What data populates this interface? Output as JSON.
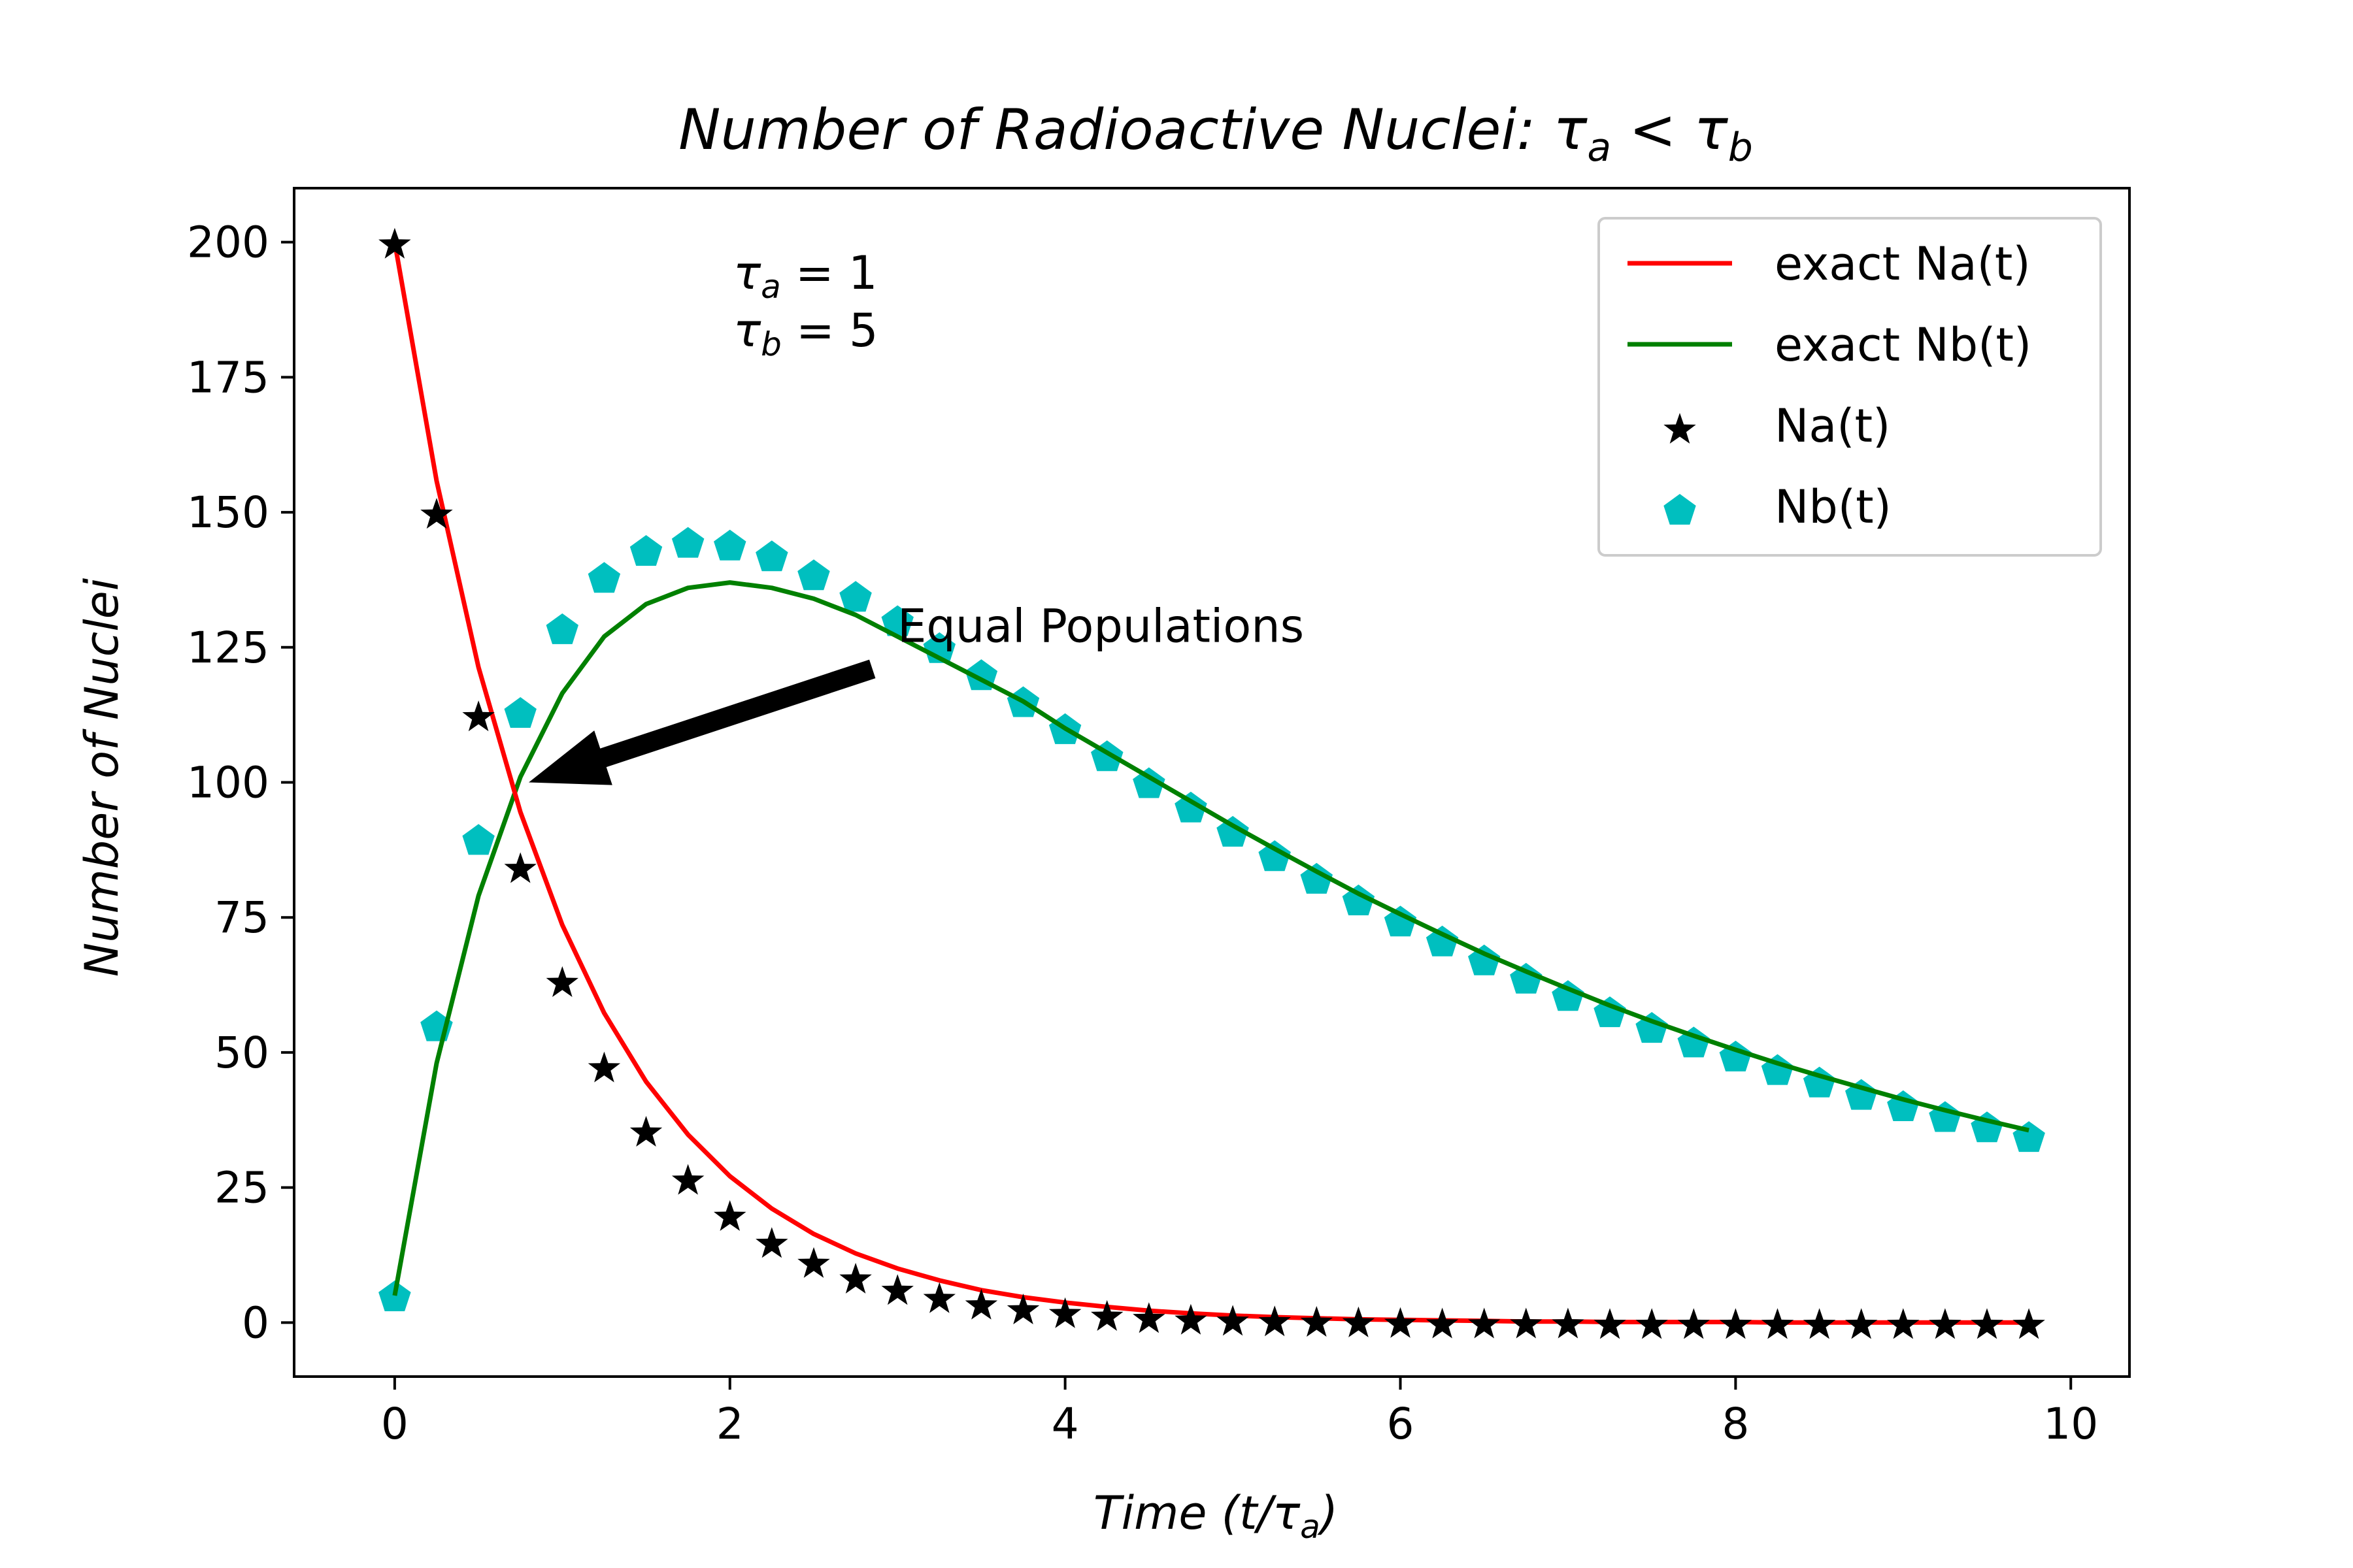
{
  "chart_data": {
    "type": "line",
    "title": {
      "prefix": "Number of Radioactive Nuclei: τ",
      "sub1": "a",
      "middle": " < τ",
      "sub2": "b"
    },
    "xlabel": {
      "prefix": "Time (t/τ",
      "sub": "a",
      "suffix": ")"
    },
    "ylabel": "Number of Nuclei",
    "xlim": [
      -0.6,
      10.35
    ],
    "ylim": [
      -10,
      210
    ],
    "xticks": [
      0,
      2,
      4,
      6,
      8,
      10
    ],
    "yticks": [
      0,
      25,
      50,
      75,
      100,
      125,
      150,
      175,
      200
    ],
    "legend_position": "upper right",
    "parameters": [
      {
        "symbol": "τ",
        "sub": "a",
        "text": " = 1"
      },
      {
        "symbol": "τ",
        "sub": "b",
        "text": " = 5"
      }
    ],
    "annotation": {
      "text": "Equal Populations",
      "text_at": [
        3.0,
        126
      ],
      "arrow_from": [
        2.85,
        121
      ],
      "arrow_to": [
        0.8,
        100
      ]
    },
    "series": [
      {
        "name": "exact Na(t)",
        "kind": "line",
        "color": "#ff0000",
        "x": [
          0,
          0.25,
          0.5,
          0.75,
          1,
          1.25,
          1.5,
          1.75,
          2,
          2.25,
          2.5,
          2.75,
          3,
          3.25,
          3.5,
          3.75,
          4,
          4.25,
          4.5,
          4.75,
          5,
          5.25,
          5.5,
          5.75,
          6,
          6.25,
          6.5,
          6.75,
          7,
          7.25,
          7.5,
          7.75,
          8,
          8.25,
          8.5,
          8.75,
          9,
          9.25,
          9.5,
          9.75
        ],
        "y": [
          200,
          155.8,
          121.3,
          94.5,
          73.6,
          57.3,
          44.6,
          34.8,
          27.1,
          21.1,
          16.4,
          12.8,
          10.0,
          7.8,
          6.0,
          4.7,
          3.7,
          2.9,
          2.2,
          1.7,
          1.3,
          1.0,
          0.8,
          0.6,
          0.5,
          0.4,
          0.3,
          0.2,
          0.2,
          0.1,
          0.1,
          0.1,
          0.1,
          0,
          0,
          0,
          0,
          0,
          0,
          0
        ]
      },
      {
        "name": "exact Nb(t)",
        "kind": "line",
        "color": "#008000",
        "x": [
          0,
          0.25,
          0.5,
          0.75,
          1,
          1.25,
          1.5,
          1.75,
          2,
          2.25,
          2.5,
          2.75,
          3,
          3.25,
          3.5,
          3.75,
          4,
          4.25,
          4.5,
          4.75,
          5,
          5.25,
          5.5,
          5.75,
          6,
          6.25,
          6.5,
          6.75,
          7,
          7.25,
          7.5,
          7.75,
          8,
          8.25,
          8.5,
          8.75,
          9,
          9.25,
          9.5,
          9.75
        ],
        "y": [
          5,
          48,
          79,
          101,
          116.5,
          127,
          133,
          136,
          137,
          136,
          134,
          131,
          127,
          123,
          119,
          115,
          110,
          105.5,
          101,
          96.5,
          92,
          87.7,
          83.5,
          79.4,
          75.6,
          71.9,
          68.3,
          65,
          61.8,
          58.7,
          55.8,
          53.1,
          50.5,
          48,
          45.7,
          43.5,
          41.3,
          39.3,
          37.4,
          35.6
        ]
      },
      {
        "name": "Na(t)",
        "kind": "scatter",
        "marker": "star",
        "color": "#000000",
        "x": [
          0,
          0.25,
          0.5,
          0.75,
          1,
          1.25,
          1.5,
          1.75,
          2,
          2.25,
          2.5,
          2.75,
          3,
          3.25,
          3.5,
          3.75,
          4,
          4.25,
          4.5,
          4.75,
          5,
          5.25,
          5.5,
          5.75,
          6,
          6.25,
          6.5,
          6.75,
          7,
          7.25,
          7.5,
          7.75,
          8,
          8.25,
          8.5,
          8.75,
          9,
          9.25,
          9.5,
          9.75
        ],
        "y": [
          200,
          150,
          112.5,
          84.4,
          63.3,
          47.5,
          35.6,
          26.7,
          20,
          15,
          11.3,
          8.4,
          6.3,
          4.8,
          3.6,
          2.7,
          2,
          1.5,
          1.1,
          0.8,
          0.6,
          0.5,
          0.4,
          0.3,
          0.2,
          0.1,
          0.1,
          0.1,
          0.1,
          0,
          0,
          0,
          0,
          0,
          0,
          0,
          0,
          0,
          0,
          0
        ]
      },
      {
        "name": "Nb(t)",
        "kind": "scatter",
        "marker": "pentagon",
        "color": "#00bfbf",
        "x": [
          0,
          0.25,
          0.5,
          0.75,
          1,
          1.25,
          1.5,
          1.75,
          2,
          2.25,
          2.5,
          2.75,
          3,
          3.25,
          3.5,
          3.75,
          4,
          4.25,
          4.5,
          4.75,
          5,
          5.25,
          5.5,
          5.75,
          6,
          6.25,
          6.5,
          6.75,
          7,
          7.25,
          7.5,
          7.75,
          8,
          8.25,
          8.5,
          8.75,
          9,
          9.25,
          9.5,
          9.75
        ],
        "y": [
          5,
          55,
          89.5,
          113,
          128.5,
          138,
          143,
          144.5,
          144,
          142,
          138.5,
          134.5,
          130,
          125,
          120,
          115,
          110,
          105,
          100,
          95.5,
          91,
          86.5,
          82.3,
          78.3,
          74.4,
          70.7,
          67.2,
          63.8,
          60.6,
          57.6,
          54.7,
          52,
          49.4,
          46.9,
          44.6,
          42.3,
          40.2,
          38.2,
          36.3,
          34.5
        ]
      }
    ]
  }
}
